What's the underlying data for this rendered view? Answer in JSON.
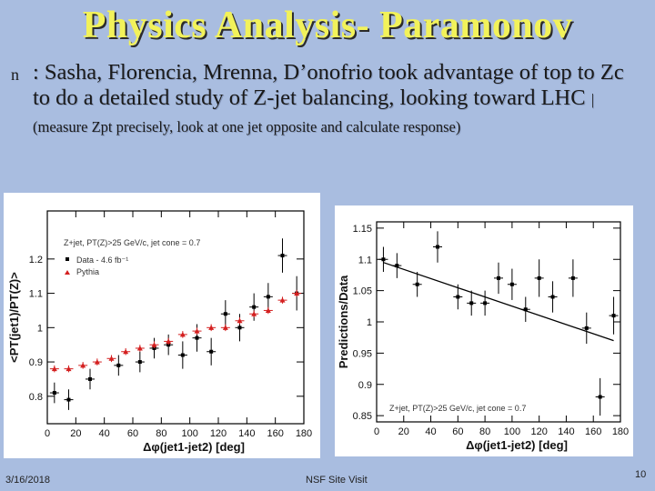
{
  "slide": {
    "title": "Physics Analysis- Paramonov",
    "bullet_marker": "n",
    "bullet_main": ": Sasha, Florencia, Mrenna, D’onofrio took advantage of top to Zc to do a detailed study of Z-jet balancing, looking toward LHC",
    "bullet_small": "| (measure Zpt precisely, look at one jet opposite and calculate response)",
    "footer_date": "3/16/2018",
    "footer_center": "NSF Site Visit",
    "footer_page": "10"
  },
  "chart_data": [
    {
      "type": "scatter",
      "title": "",
      "xlabel": "Δφ(jet1-jet2) [deg]",
      "ylabel": "<PT(jet1)/PT(Z)>",
      "xlim": [
        0,
        180
      ],
      "ylim": [
        0.72,
        1.34
      ],
      "x_ticks": [
        "0",
        "20",
        "40",
        "60",
        "80",
        "100",
        "120",
        "140",
        "160",
        "180"
      ],
      "y_ticks": [
        "0.8",
        "0.9",
        "1",
        "1.1",
        "1.2"
      ],
      "y_tick_values": [
        0.8,
        0.9,
        1.0,
        1.1,
        1.2
      ],
      "annotation": "Z+jet, PT(Z)>25 GeV/c, jet cone = 0.7",
      "legend_position": "top-left",
      "series": [
        {
          "name": "Data - 4.6 fb⁻¹",
          "marker": "square",
          "color": "#000000",
          "x": [
            5,
            15,
            30,
            50,
            65,
            75,
            85,
            95,
            105,
            115,
            125,
            135,
            145,
            155,
            165,
            175
          ],
          "y": [
            0.81,
            0.79,
            0.85,
            0.89,
            0.9,
            0.94,
            0.95,
            0.92,
            0.97,
            0.93,
            1.04,
            1.0,
            1.06,
            1.09,
            1.21,
            1.1
          ],
          "yerr": [
            0.03,
            0.03,
            0.03,
            0.03,
            0.03,
            0.03,
            0.03,
            0.04,
            0.04,
            0.04,
            0.04,
            0.04,
            0.04,
            0.04,
            0.05,
            0.05
          ]
        },
        {
          "name": "Pythia",
          "marker": "triangle",
          "color": "#d42020",
          "x": [
            5,
            15,
            25,
            35,
            45,
            55,
            65,
            75,
            85,
            95,
            105,
            115,
            125,
            135,
            145,
            155,
            165,
            175
          ],
          "y": [
            0.88,
            0.88,
            0.89,
            0.9,
            0.91,
            0.93,
            0.94,
            0.95,
            0.96,
            0.98,
            0.99,
            1.0,
            1.0,
            1.02,
            1.04,
            1.05,
            1.08,
            1.1
          ],
          "yerr": [
            0.01,
            0.01,
            0.01,
            0.01,
            0.01,
            0.01,
            0.01,
            0.01,
            0.01,
            0.01,
            0.01,
            0.01,
            0.01,
            0.01,
            0.01,
            0.01,
            0.01,
            0.01
          ]
        }
      ]
    },
    {
      "type": "scatter",
      "title": "",
      "xlabel": "Δφ(jet1-jet2) [deg]",
      "ylabel": "Predictions/Data",
      "xlim": [
        0,
        180
      ],
      "ylim": [
        0.84,
        1.16
      ],
      "x_ticks": [
        "0",
        "20",
        "40",
        "60",
        "80",
        "100",
        "120",
        "140",
        "160",
        "180"
      ],
      "y_ticks": [
        "0.85",
        "0.9",
        "0.95",
        "1",
        "1.05",
        "1.1",
        "1.15"
      ],
      "y_tick_values": [
        0.85,
        0.9,
        0.95,
        1.0,
        1.05,
        1.1,
        1.15
      ],
      "annotation": "Z+jet, PT(Z)>25 GeV/c, jet cone = 0.7",
      "fit_line": {
        "x": [
          5,
          175
        ],
        "y": [
          1.095,
          0.97
        ]
      },
      "series": [
        {
          "name": "",
          "marker": "square",
          "color": "#000000",
          "x": [
            5,
            15,
            30,
            45,
            60,
            70,
            80,
            90,
            100,
            110,
            120,
            130,
            145,
            155,
            165,
            175
          ],
          "y": [
            1.1,
            1.09,
            1.06,
            1.12,
            1.04,
            1.03,
            1.03,
            1.07,
            1.06,
            1.02,
            1.07,
            1.04,
            1.07,
            0.99,
            0.88,
            1.01
          ],
          "yerr": [
            0.02,
            0.02,
            0.02,
            0.025,
            0.02,
            0.02,
            0.02,
            0.025,
            0.025,
            0.02,
            0.03,
            0.025,
            0.03,
            0.025,
            0.03,
            0.03
          ]
        }
      ]
    }
  ]
}
